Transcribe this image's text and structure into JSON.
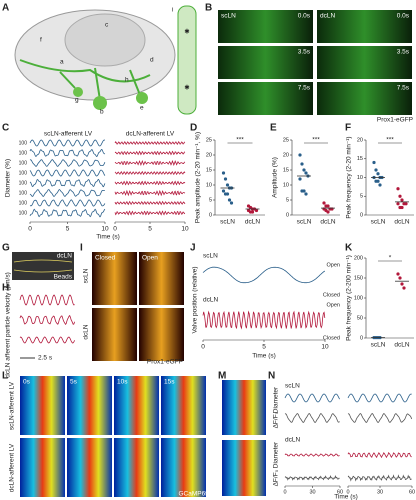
{
  "panel_labels": [
    "A",
    "B",
    "C",
    "D",
    "E",
    "F",
    "G",
    "H",
    "I",
    "J",
    "K",
    "L",
    "M",
    "N"
  ],
  "a": {
    "labels": [
      "a",
      "b",
      "c",
      "d",
      "e",
      "f",
      "g",
      "h",
      "i"
    ]
  },
  "b": {
    "columns": [
      "scLN",
      "dcLN"
    ],
    "times": [
      "0.0s",
      "3.5s",
      "7.5s"
    ],
    "legend": "Prox1-eGFP"
  },
  "c": {
    "titles": [
      "scLN-afferent LV",
      "dcLN-afferent LV"
    ],
    "y_label": "Diameter (%)",
    "y_tick": "100",
    "x_label": "Time (s)",
    "xticks": [
      0,
      5,
      10
    ]
  },
  "chart_data": [
    {
      "type": "dot",
      "y_label": "Peak amplitude (2-20 min⁻¹, %)",
      "ylim": [
        0,
        25
      ],
      "yticks": [
        0,
        5,
        10,
        15,
        20,
        25
      ],
      "significance": "***",
      "means": [
        9,
        2
      ],
      "series": [
        {
          "name": "scLN",
          "color": "#2a5f8a",
          "values": [
            14,
            12,
            10,
            9,
            9,
            8,
            7,
            7,
            5,
            4
          ]
        },
        {
          "name": "dcLN",
          "color": "#b2183b",
          "values": [
            3,
            2.5,
            2,
            2,
            1.5,
            1.5,
            1,
            1
          ]
        }
      ]
    },
    {
      "type": "dot",
      "y_label": "Amplitude (%)",
      "ylim": [
        0,
        25
      ],
      "yticks": [
        0,
        5,
        10,
        15,
        20,
        25
      ],
      "significance": "***",
      "means": [
        13,
        2.3
      ],
      "series": [
        {
          "name": "scLN",
          "color": "#2a5f8a",
          "values": [
            20,
            17,
            15,
            14,
            13,
            12,
            8,
            8,
            7
          ]
        },
        {
          "name": "dcLN",
          "color": "#b2183b",
          "values": [
            4,
            3,
            3,
            2,
            2,
            2,
            1.5,
            1
          ]
        }
      ]
    },
    {
      "type": "dot",
      "y_label": "Peak frequency (2-20 min⁻¹)",
      "ylim": [
        0,
        20
      ],
      "yticks": [
        0,
        5,
        10,
        15,
        20
      ],
      "significance": "***",
      "means": [
        10,
        3.5
      ],
      "series": [
        {
          "name": "scLN",
          "color": "#2a5f8a",
          "values": [
            14,
            12,
            11,
            10,
            10,
            10,
            9,
            9,
            8
          ]
        },
        {
          "name": "dcLN",
          "color": "#b2183b",
          "values": [
            7,
            5,
            4,
            3,
            3,
            3,
            2,
            2
          ]
        }
      ]
    },
    {
      "type": "dot",
      "y_label": "Peak frequency (2-200 min⁻¹)",
      "ylim": [
        0,
        200
      ],
      "yticks": [
        0,
        50,
        100,
        150,
        200
      ],
      "significance": "*",
      "means": [
        1,
        142
      ],
      "series": [
        {
          "name": "scLN",
          "color": "#2a5f8a",
          "values": [
            1,
            1,
            1,
            1
          ]
        },
        {
          "name": "dcLN",
          "color": "#b2183b",
          "values": [
            160,
            150,
            135,
            125
          ]
        }
      ]
    }
  ],
  "g": {
    "title": "dcLN",
    "legend": "Beads"
  },
  "h": {
    "y_label": "dcLN afferent particle velocity (µm/s)",
    "scale": "2.5 s"
  },
  "i": {
    "columns": [
      "Closed",
      "Open"
    ],
    "rows": [
      "scLN",
      "dcLN"
    ],
    "legend": "Prox1-eGFP"
  },
  "j": {
    "rows": [
      "scLN",
      "dcLN"
    ],
    "states": [
      "Open",
      "Closed"
    ],
    "y_label": "Valve position (relative)",
    "x_label": "Time (s)",
    "xticks": [
      0,
      5,
      10
    ]
  },
  "l": {
    "rows": [
      "scLN-afferent LV",
      "dcLN-afferent LV"
    ],
    "times": [
      "0s",
      "5s",
      "10s",
      "15s"
    ],
    "legend": "GCaMP6f"
  },
  "n": {
    "rows": [
      "scLN",
      "dcLN"
    ],
    "y_labels": [
      "Diameter",
      "ΔF/F₀"
    ],
    "x_label": "Time (s)",
    "xticks": [
      0,
      30,
      60
    ]
  }
}
